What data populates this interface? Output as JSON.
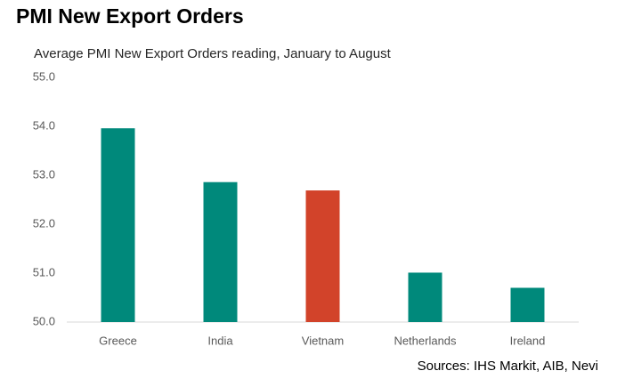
{
  "chart_data": {
    "type": "bar",
    "title": "PMI New Export Orders",
    "subtitle": "Average PMI New Export Orders reading, January to August",
    "source": "Sources: IHS Markit, AIB, Nevi",
    "categories": [
      "Greece",
      "India",
      "Vietnam",
      "Netherlands",
      "Ireland"
    ],
    "values": [
      53.96,
      52.86,
      52.69,
      51.01,
      50.7
    ],
    "colors": [
      "#00897b",
      "#00897b",
      "#d2432a",
      "#00897b",
      "#00897b"
    ],
    "ylim": [
      50,
      55
    ],
    "yticks": [
      {
        "value": 50,
        "label": "50.0"
      },
      {
        "value": 51,
        "label": "51.0"
      },
      {
        "value": 52,
        "label": "52.0"
      },
      {
        "value": 53,
        "label": "53.0"
      },
      {
        "value": 54,
        "label": "54.0"
      },
      {
        "value": 55,
        "label": "55.0"
      }
    ],
    "grid": false
  }
}
